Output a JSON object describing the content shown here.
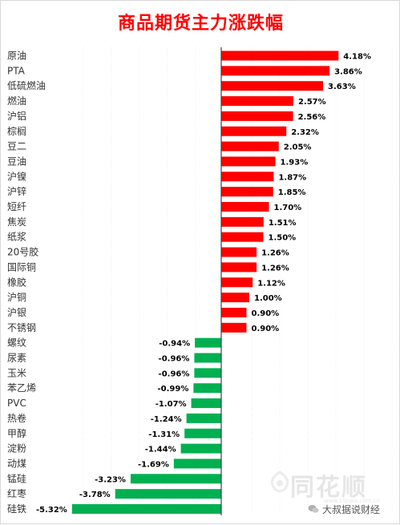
{
  "chart_data": {
    "type": "bar",
    "orientation": "horizontal",
    "title": "商品期货主力涨跌幅",
    "xlabel": "",
    "ylabel": "",
    "value_unit": "%",
    "xlim": [
      -5.32,
      4.18
    ],
    "grid": false,
    "legend": "none",
    "colors": {
      "positive": "#ff0000",
      "negative": "#00b050"
    },
    "categories": [
      "原油",
      "PTA",
      "低硫燃油",
      "燃油",
      "沪铝",
      "棕榈",
      "豆二",
      "豆油",
      "沪镍",
      "沪锌",
      "短纤",
      "焦炭",
      "纸浆",
      "20号胶",
      "国际铜",
      "橡胶",
      "沪铜",
      "沪银",
      "不锈钢",
      "螺纹",
      "尿素",
      "玉米",
      "苯乙烯",
      "PVC",
      "热卷",
      "甲醇",
      "淀粉",
      "动煤",
      "锰硅",
      "红枣",
      "硅铁"
    ],
    "values": [
      4.18,
      3.86,
      3.63,
      2.57,
      2.56,
      2.32,
      2.05,
      1.93,
      1.87,
      1.85,
      1.7,
      1.51,
      1.5,
      1.26,
      1.26,
      1.12,
      1.0,
      0.9,
      0.9,
      -0.94,
      -0.96,
      -0.96,
      -0.99,
      -1.07,
      -1.24,
      -1.31,
      -1.44,
      -1.69,
      -3.23,
      -3.78,
      -5.32
    ],
    "value_labels": [
      "4.18%",
      "3.86%",
      "3.63%",
      "2.57%",
      "2.56%",
      "2.32%",
      "2.05%",
      "1.93%",
      "1.87%",
      "1.85%",
      "1.70%",
      "1.51%",
      "1.50%",
      "1.26%",
      "1.26%",
      "1.12%",
      "1.00%",
      "0.90%",
      "0.90%",
      "-0.94%",
      "-0.96%",
      "-0.96%",
      "-0.99%",
      "-1.07%",
      "-1.24%",
      "-1.31%",
      "-1.44%",
      "-1.69%",
      "-3.23%",
      "-3.78%",
      "-5.32%"
    ]
  },
  "watermark": {
    "brand": "同花顺",
    "url": "www.10jqka.com.cn",
    "account": "大叔据说财经",
    "logo": "10jqka-logo-icon",
    "account_icon": "wechat-icon"
  }
}
